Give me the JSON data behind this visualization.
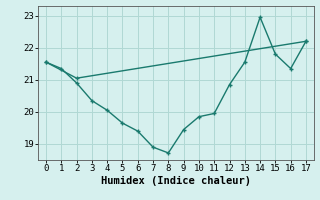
{
  "line1_x": [
    0,
    1,
    2,
    3,
    4,
    5,
    6,
    7,
    8,
    9,
    10,
    11,
    12,
    13,
    14,
    15,
    16,
    17
  ],
  "line1_y": [
    21.55,
    21.35,
    20.9,
    20.35,
    20.05,
    19.65,
    19.4,
    18.9,
    18.72,
    19.45,
    19.85,
    19.95,
    20.85,
    21.55,
    22.95,
    21.8,
    21.35,
    22.2
  ],
  "line2_x": [
    0,
    2,
    17
  ],
  "line2_y": [
    21.55,
    21.05,
    22.2
  ],
  "line_color": "#1a7a6e",
  "bg_color": "#d6f0ee",
  "grid_color": "#b0d8d4",
  "xlabel": "Humidex (Indice chaleur)",
  "ylim": [
    18.5,
    23.3
  ],
  "xlim": [
    -0.5,
    17.5
  ],
  "yticks": [
    19,
    20,
    21,
    22,
    23
  ],
  "xticks": [
    0,
    1,
    2,
    3,
    4,
    5,
    6,
    7,
    8,
    9,
    10,
    11,
    12,
    13,
    14,
    15,
    16,
    17
  ],
  "xlabel_fontsize": 7.5,
  "tick_fontsize": 6.5,
  "line_width": 1.0,
  "marker_size": 3.5
}
